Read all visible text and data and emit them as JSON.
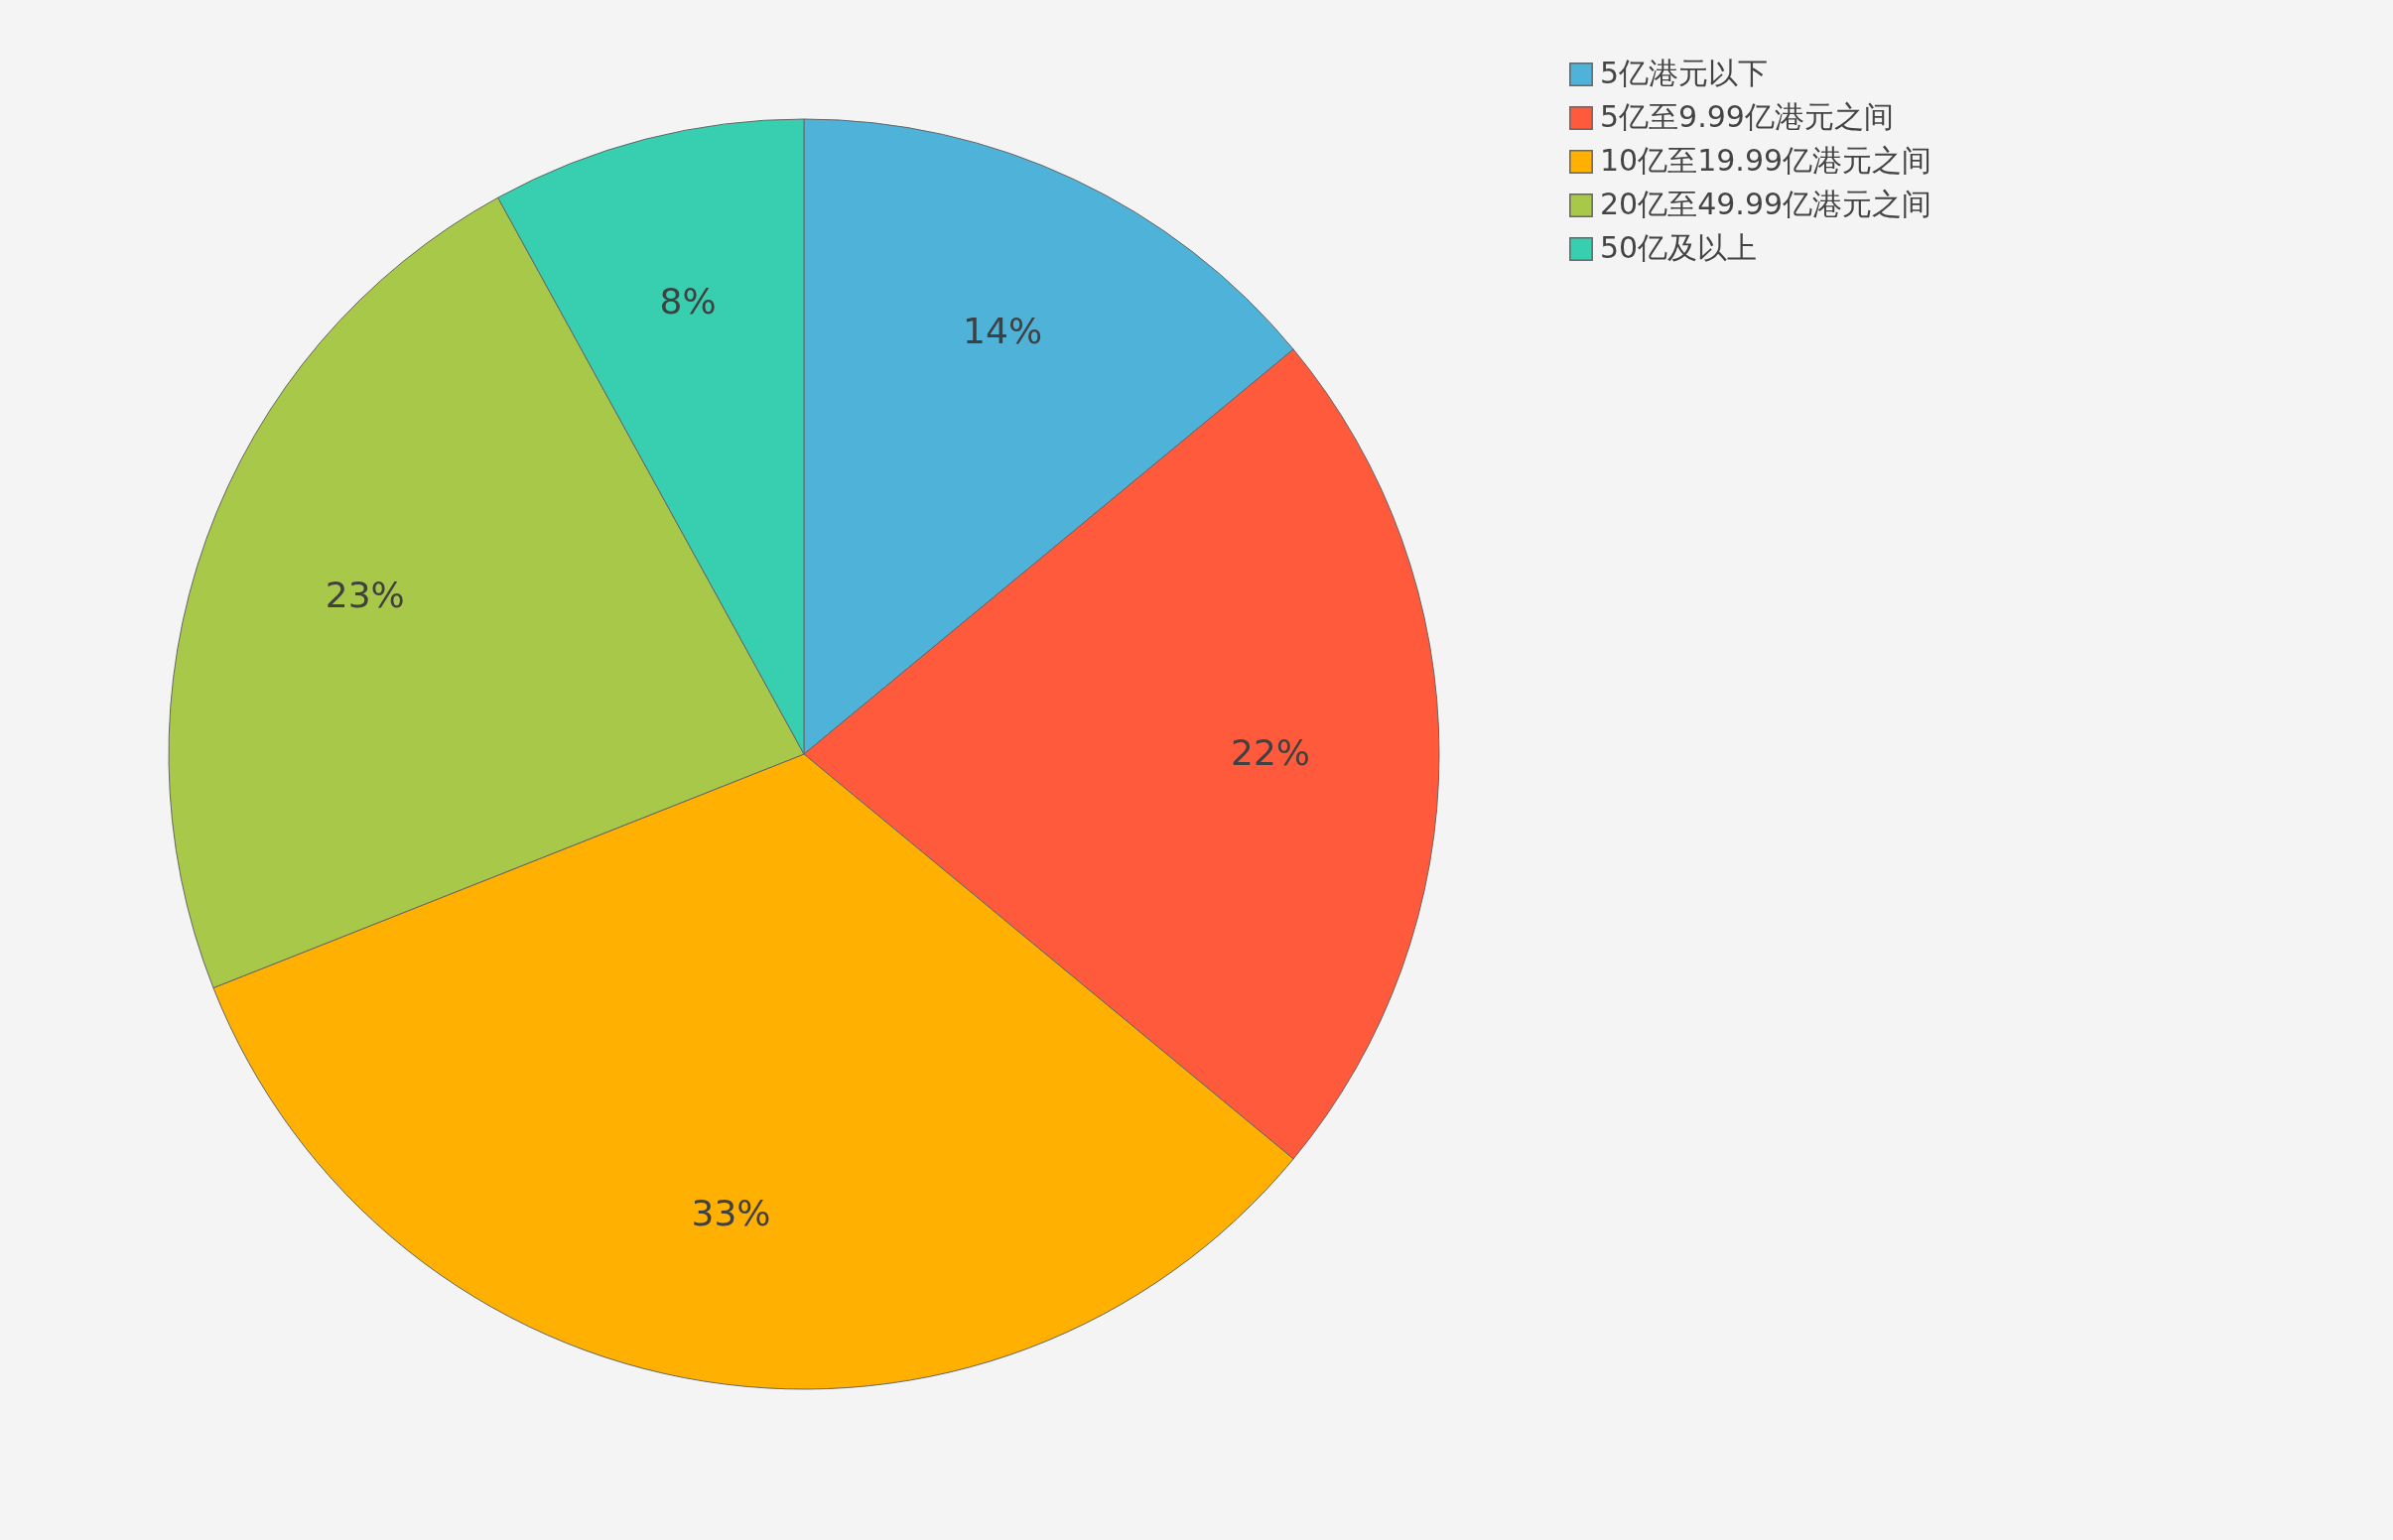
{
  "chart_data": {
    "type": "pie",
    "categories": [
      "5亿港元以下",
      "5亿至9.99亿港元之间",
      "10亿至19.99亿港元之间",
      "20亿至49.99亿港元之间",
      "50亿及以上"
    ],
    "values": [
      14,
      22,
      33,
      23,
      8
    ],
    "colors": [
      "#4fb3d9",
      "#ff5a3c",
      "#ffb000",
      "#a8c84a",
      "#38cfb0"
    ],
    "value_labels": [
      "14%",
      "22%",
      "33%",
      "23%",
      "8%"
    ],
    "legend": "right"
  }
}
